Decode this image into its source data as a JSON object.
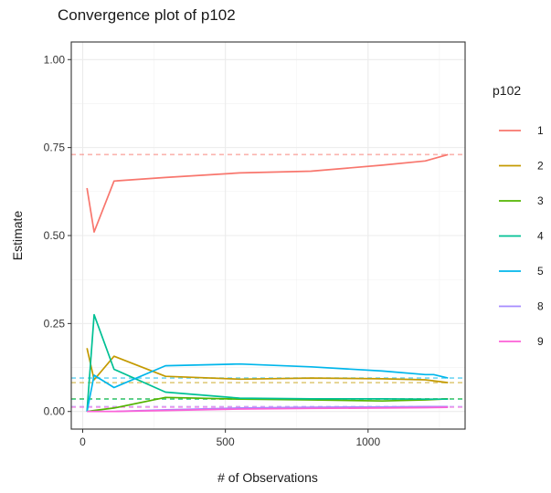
{
  "chart_data": {
    "type": "line",
    "title": "Convergence plot of p102",
    "xlabel": "# of Observations",
    "ylabel": "Estimate",
    "xlim": [
      -40,
      1340
    ],
    "ylim": [
      -0.05,
      1.05
    ],
    "xticks": [
      0,
      500,
      1000
    ],
    "xtick_labels": [
      "0",
      "500",
      "1000"
    ],
    "yticks": [
      0,
      0.25,
      0.5,
      0.75,
      1.0
    ],
    "ytick_labels": [
      "0.00",
      "0.25",
      "0.50",
      "0.75",
      "1.00"
    ],
    "grid": true,
    "legend": {
      "title": "p102",
      "position": "right"
    },
    "series": [
      {
        "name": "1",
        "color": "#F8766D",
        "x": [
          15,
          40,
          110,
          290,
          550,
          800,
          1050,
          1200,
          1280
        ],
        "y": [
          0.635,
          0.51,
          0.655,
          0.665,
          0.678,
          0.683,
          0.7,
          0.712,
          0.73
        ],
        "reference": 0.73
      },
      {
        "name": "2",
        "color": "#C49A00",
        "x": [
          15,
          40,
          110,
          290,
          550,
          800,
          1050,
          1200,
          1280
        ],
        "y": [
          0.18,
          0.09,
          0.157,
          0.1,
          0.092,
          0.095,
          0.093,
          0.09,
          0.082
        ],
        "reference": 0.082
      },
      {
        "name": "3",
        "color": "#53B400",
        "x": [
          15,
          40,
          110,
          290,
          550,
          800,
          1050,
          1200,
          1280
        ],
        "y": [
          0.0,
          0.003,
          0.01,
          0.04,
          0.035,
          0.033,
          0.03,
          0.033,
          0.036
        ],
        "reference": 0.036
      },
      {
        "name": "4",
        "color": "#00C094",
        "x": [
          15,
          40,
          110,
          290,
          550,
          800,
          1050,
          1200,
          1280
        ],
        "y": [
          0.0,
          0.275,
          0.12,
          0.055,
          0.038,
          0.036,
          0.036,
          0.035,
          0.035
        ],
        "reference": 0.035
      },
      {
        "name": "5",
        "color": "#00B6EB",
        "x": [
          15,
          40,
          110,
          290,
          550,
          800,
          1050,
          1200,
          1230,
          1280
        ],
        "y": [
          0.0,
          0.103,
          0.068,
          0.13,
          0.135,
          0.127,
          0.115,
          0.105,
          0.105,
          0.095
        ],
        "reference": 0.095
      },
      {
        "name": "8",
        "color": "#A58AFF",
        "x": [
          15,
          40,
          110,
          290,
          550,
          800,
          1050,
          1200,
          1280
        ],
        "y": [
          0.0,
          0.0,
          0.0,
          0.005,
          0.01,
          0.012,
          0.013,
          0.014,
          0.014
        ],
        "reference": 0.014
      },
      {
        "name": "9",
        "color": "#FB61D7",
        "x": [
          15,
          40,
          110,
          290,
          550,
          800,
          1050,
          1200,
          1280
        ],
        "y": [
          0.0,
          0.0,
          0.0,
          0.003,
          0.007,
          0.009,
          0.01,
          0.011,
          0.012
        ],
        "reference": 0.012
      }
    ]
  }
}
